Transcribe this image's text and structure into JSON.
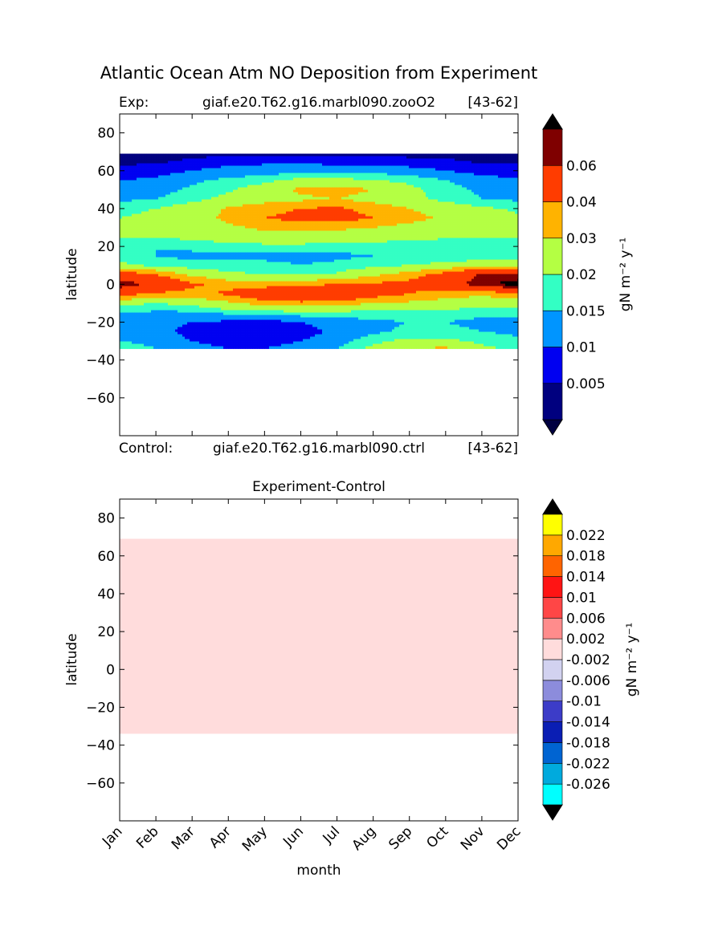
{
  "figure": {
    "title": "Atlantic Ocean Atm NO Deposition from Experiment"
  },
  "colors": {
    "top_levels": [
      "#00007f",
      "#0000f1",
      "#0095ff",
      "#33ffc4",
      "#b4ff43",
      "#ffb300",
      "#ff3c00",
      "#7f0000"
    ],
    "top_under": "#000040",
    "top_over": "#000000",
    "diff_levels": [
      "#00ffff",
      "#00aadd",
      "#0064d2",
      "#0a1eb4",
      "#3c3cc8",
      "#8c8cdc",
      "#d2d2f0",
      "#ffdcdc",
      "#ff8c8c",
      "#ff4646",
      "#ff1414",
      "#ff6400",
      "#ffa800",
      "#ffff00"
    ],
    "diff_under": "#000000",
    "diff_over": "#000000"
  },
  "chart_data": [
    {
      "type": "heatmap",
      "header_left_label": "Exp:",
      "header_case": "giaf.e20.T62.g16.marbl090.zooO2",
      "header_years": "[43-62]",
      "footer_left_label": "Control:",
      "footer_case": "giaf.e20.T62.g16.marbl090.ctrl",
      "footer_years": "[43-62]",
      "ylabel": "latitude",
      "ylim": [
        -80,
        90
      ],
      "yticks": [
        "80",
        "60",
        "40",
        "20",
        "0",
        "−20",
        "−40",
        "−60"
      ],
      "yticks_values": [
        80,
        60,
        40,
        20,
        0,
        -20,
        -40,
        -60
      ],
      "xlim": [
        0,
        11
      ],
      "data_lat_range": [
        -34,
        69
      ],
      "colorbar_label": "gN m⁻² y⁻¹",
      "colorbar_ticks": [
        "0.06",
        "0.04",
        "0.03",
        "0.02",
        "0.015",
        "0.01",
        "0.005"
      ],
      "levels": [
        0.0,
        0.005,
        0.01,
        0.015,
        0.02,
        0.03,
        0.04,
        0.06,
        0.07
      ],
      "grid_lats": [
        -34,
        -30,
        -25,
        -20,
        -15,
        -10,
        -5,
        0,
        5,
        10,
        15,
        20,
        25,
        30,
        35,
        40,
        45,
        50,
        55,
        60,
        65,
        69
      ],
      "z": [
        [
          0.02,
          0.015,
          0.012,
          0.01,
          0.01,
          0.012,
          0.015,
          0.022,
          0.03,
          0.032,
          0.022,
          0.018
        ],
        [
          0.015,
          0.012,
          0.01,
          0.008,
          0.008,
          0.01,
          0.013,
          0.018,
          0.022,
          0.022,
          0.018,
          0.016
        ],
        [
          0.013,
          0.011,
          0.009,
          0.007,
          0.006,
          0.008,
          0.011,
          0.014,
          0.016,
          0.016,
          0.015,
          0.014
        ],
        [
          0.013,
          0.011,
          0.01,
          0.009,
          0.008,
          0.01,
          0.012,
          0.014,
          0.015,
          0.015,
          0.014,
          0.014
        ],
        [
          0.015,
          0.014,
          0.014,
          0.016,
          0.017,
          0.018,
          0.018,
          0.018,
          0.018,
          0.017,
          0.016,
          0.016
        ],
        [
          0.022,
          0.02,
          0.022,
          0.028,
          0.034,
          0.036,
          0.034,
          0.03,
          0.028,
          0.026,
          0.024,
          0.024
        ],
        [
          0.045,
          0.038,
          0.036,
          0.042,
          0.052,
          0.062,
          0.058,
          0.046,
          0.04,
          0.034,
          0.032,
          0.036
        ],
        [
          0.068,
          0.055,
          0.042,
          0.036,
          0.034,
          0.036,
          0.04,
          0.042,
          0.044,
          0.05,
          0.068,
          0.075
        ],
        [
          0.05,
          0.04,
          0.028,
          0.022,
          0.02,
          0.02,
          0.021,
          0.028,
          0.035,
          0.046,
          0.062,
          0.064
        ],
        [
          0.022,
          0.018,
          0.016,
          0.016,
          0.016,
          0.015,
          0.016,
          0.018,
          0.02,
          0.022,
          0.025,
          0.026
        ],
        [
          0.016,
          0.015,
          0.014,
          0.014,
          0.014,
          0.014,
          0.014,
          0.015,
          0.016,
          0.016,
          0.016,
          0.016
        ],
        [
          0.015,
          0.015,
          0.016,
          0.017,
          0.018,
          0.018,
          0.017,
          0.017,
          0.016,
          0.016,
          0.016,
          0.016
        ],
        [
          0.02,
          0.02,
          0.022,
          0.024,
          0.026,
          0.026,
          0.025,
          0.024,
          0.022,
          0.021,
          0.021,
          0.021
        ],
        [
          0.022,
          0.022,
          0.025,
          0.028,
          0.032,
          0.033,
          0.032,
          0.03,
          0.026,
          0.024,
          0.023,
          0.022
        ],
        [
          0.02,
          0.022,
          0.026,
          0.032,
          0.04,
          0.044,
          0.045,
          0.04,
          0.034,
          0.028,
          0.024,
          0.021
        ],
        [
          0.018,
          0.02,
          0.024,
          0.031,
          0.036,
          0.04,
          0.042,
          0.036,
          0.03,
          0.025,
          0.021,
          0.019
        ],
        [
          0.014,
          0.015,
          0.018,
          0.022,
          0.026,
          0.028,
          0.03,
          0.026,
          0.022,
          0.018,
          0.015,
          0.014
        ],
        [
          0.012,
          0.013,
          0.016,
          0.019,
          0.024,
          0.032,
          0.034,
          0.03,
          0.022,
          0.017,
          0.014,
          0.013
        ],
        [
          0.01,
          0.011,
          0.014,
          0.016,
          0.018,
          0.022,
          0.022,
          0.02,
          0.018,
          0.015,
          0.012,
          0.011
        ],
        [
          0.006,
          0.008,
          0.01,
          0.012,
          0.012,
          0.013,
          0.013,
          0.013,
          0.012,
          0.01,
          0.008,
          0.007
        ],
        [
          0.004,
          0.004,
          0.006,
          0.008,
          0.009,
          0.009,
          0.008,
          0.008,
          0.007,
          0.006,
          0.004,
          0.004
        ],
        [
          0.003,
          0.003,
          0.003,
          0.004,
          0.004,
          0.004,
          0.004,
          0.004,
          0.003,
          0.003,
          0.003,
          0.003
        ]
      ]
    },
    {
      "type": "heatmap",
      "title": "Experiment-Control",
      "ylabel": "latitude",
      "xlabel": "month",
      "categories": [
        "Jan",
        "Feb",
        "Mar",
        "Apr",
        "May",
        "Jun",
        "Jul",
        "Aug",
        "Sep",
        "Oct",
        "Nov",
        "Dec"
      ],
      "ylim": [
        -80,
        90
      ],
      "yticks": [
        "80",
        "60",
        "40",
        "20",
        "0",
        "−20",
        "−40",
        "−60"
      ],
      "yticks_values": [
        80,
        60,
        40,
        20,
        0,
        -20,
        -40,
        -60
      ],
      "xlim": [
        0,
        11
      ],
      "data_lat_range": [
        -34,
        69
      ],
      "uniform_value": 0.0,
      "colorbar_label": "gN m⁻² y⁻¹",
      "colorbar_ticks": [
        "0.022",
        "0.018",
        "0.014",
        "0.01",
        "0.006",
        "0.002",
        "-0.002",
        "-0.006",
        "-0.01",
        "-0.014",
        "-0.018",
        "-0.022",
        "-0.026"
      ],
      "levels": [
        -0.03,
        -0.026,
        -0.022,
        -0.018,
        -0.014,
        -0.01,
        -0.006,
        -0.002,
        0.002,
        0.006,
        0.01,
        0.014,
        0.018,
        0.022,
        0.026
      ]
    }
  ]
}
